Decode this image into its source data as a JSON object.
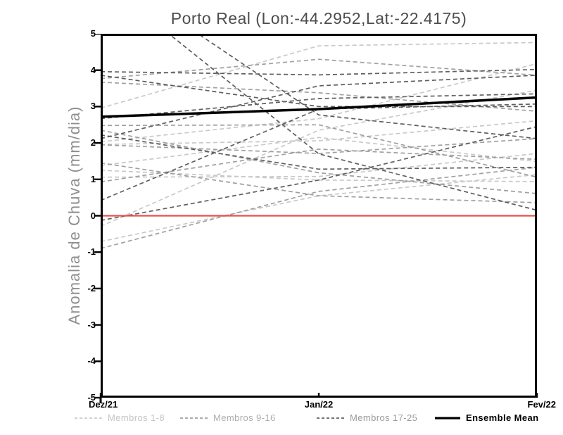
{
  "title": "Porto Real (Lon:-44.2952,Lat:-22.4175)",
  "chart_data": {
    "type": "line",
    "title": "Porto Real (Lon:-44.2952,Lat:-22.4175)",
    "xlabel": "",
    "ylabel": "Anomalia de Chuva (mm/dia)",
    "x": [
      "Dez/21",
      "Jan/22",
      "Fev/22"
    ],
    "ylim": [
      -5,
      5
    ],
    "yticks": [
      "5",
      "4",
      "3",
      "2",
      "1",
      "0",
      "-1",
      "-2",
      "-3",
      "-4",
      "-5"
    ],
    "grid": false,
    "legend_position": "bottom",
    "zero_line": {
      "value": 0,
      "color": "#e8524a"
    },
    "frame_color": "#000000",
    "groups": [
      {
        "label": "Membros 1-8",
        "color": "#c9c9c9",
        "label_color": "#c4c4c4",
        "style": "dashed",
        "series": [
          [
            2.96,
            4.67,
            4.76
          ],
          [
            2.03,
            2.67,
            4.18
          ],
          [
            1.96,
            2.06,
            2.61
          ],
          [
            1.38,
            2.15,
            1.49
          ],
          [
            1.25,
            0.98,
            0.94
          ],
          [
            1.06,
            1.08,
            1.71
          ],
          [
            -0.29,
            2.35,
            3.45
          ],
          [
            -0.71,
            0.55,
            1.13
          ]
        ]
      },
      {
        "label": "Membros 9-16",
        "color": "#a0a0a0",
        "label_color": "#aeaeae",
        "style": "dashed",
        "series": [
          [
            3.67,
            3.38,
            2.87
          ],
          [
            3.77,
            4.3,
            3.86
          ],
          [
            2.48,
            2.5,
            1.06
          ],
          [
            2.35,
            1.18,
            0.61
          ],
          [
            1.95,
            1.71,
            2.12
          ],
          [
            0.93,
            1.83,
            1.55
          ],
          [
            1.45,
            0.55,
            0.36
          ],
          [
            -0.9,
            0.67,
            1.33
          ]
        ]
      },
      {
        "label": "Membros 17-25",
        "color": "#5f5f5f",
        "label_color": "#9a9a9a",
        "style": "dashed",
        "series": [
          [
            3.96,
            3.87,
            4.02
          ],
          [
            3.86,
            3.0,
            3.0
          ],
          [
            6.5,
            1.7,
            0.15
          ],
          [
            6.8,
            2.77,
            2.12
          ],
          [
            2.67,
            3.22,
            3.35
          ],
          [
            2.22,
            1.28,
            1.33
          ],
          [
            2.12,
            3.57,
            3.86
          ],
          [
            0.42,
            2.93,
            3.07
          ],
          [
            -0.13,
            0.98,
            2.45
          ]
        ]
      },
      {
        "label": "Ensemble Mean",
        "color": "#000000",
        "label_color": "#000000",
        "style": "solid",
        "series": [
          [
            2.72,
            2.93,
            3.25
          ]
        ]
      }
    ]
  }
}
